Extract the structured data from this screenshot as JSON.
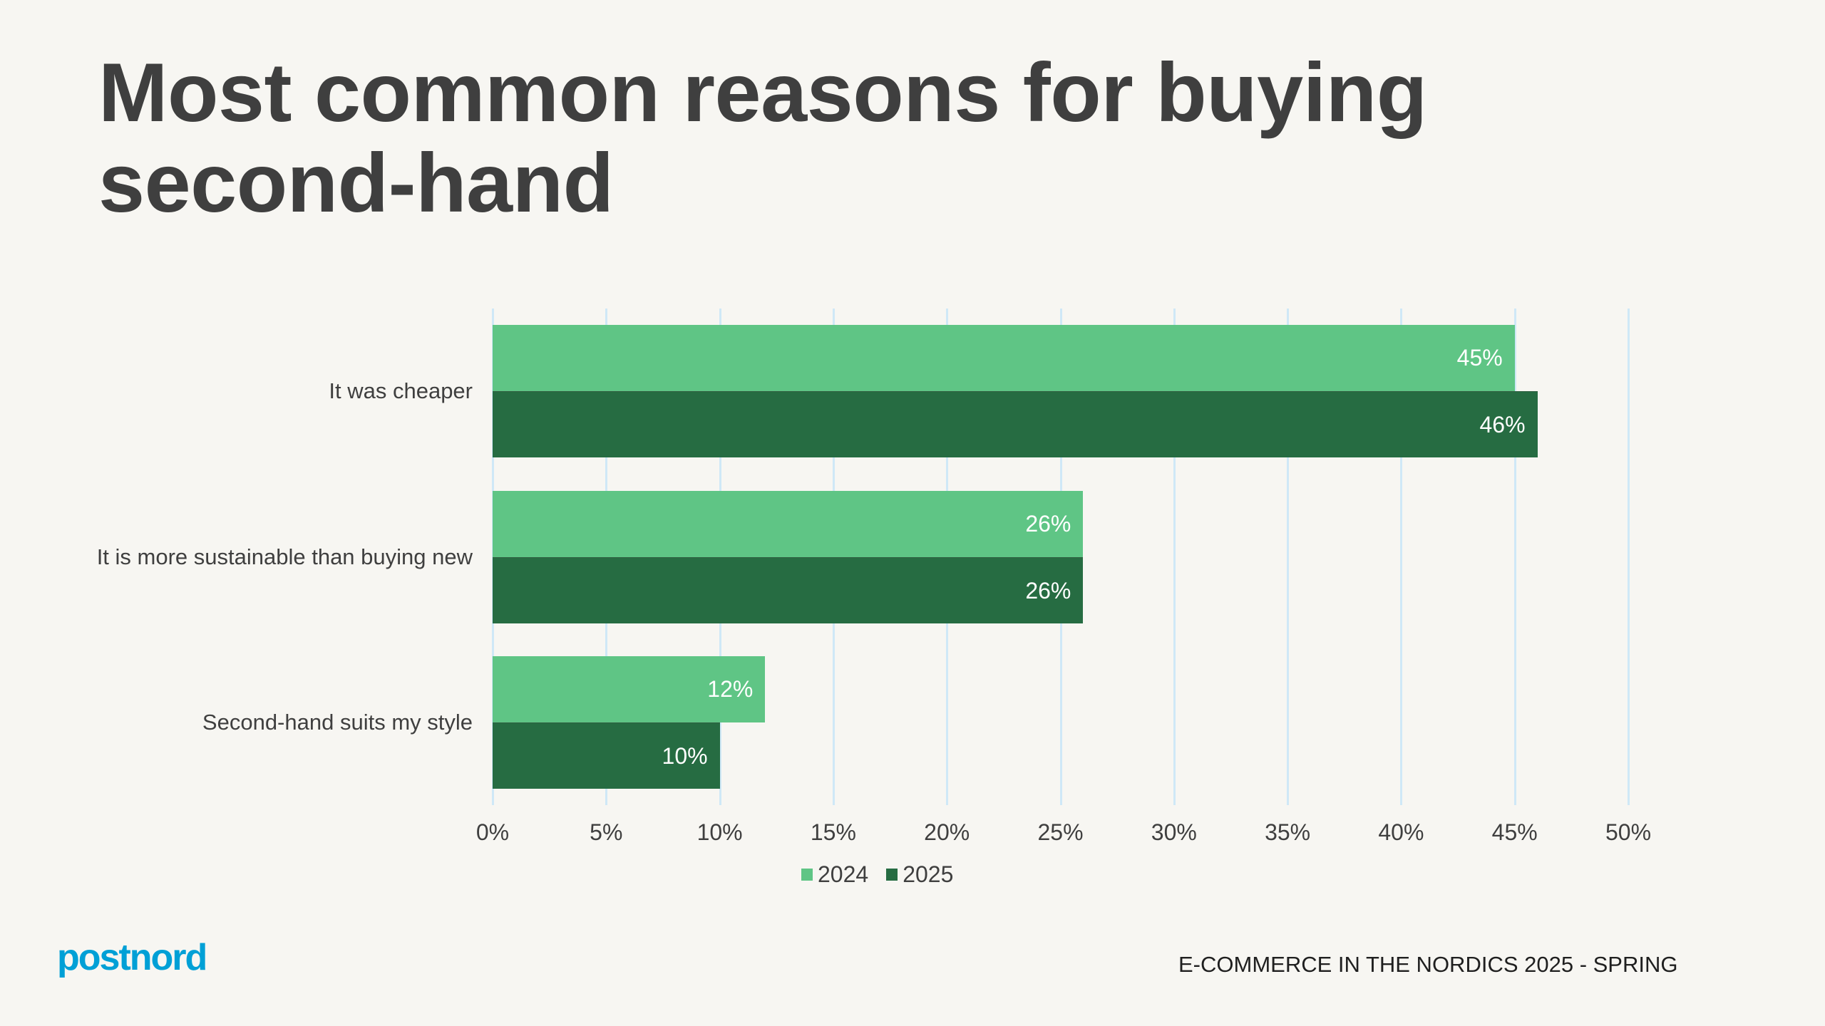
{
  "slide": {
    "title": "Most common reasons for buying second-hand",
    "footer": "E-COMMERCE IN THE NORDICS 2025 - SPRING",
    "logo": "postnord",
    "colors": {
      "background": "#f7f6f2",
      "series_2024": "#5fc585",
      "series_2025": "#266c42",
      "gridline": "#cfe8f7",
      "text": "#3f3f3f",
      "logo": "#00a0d6"
    }
  },
  "chart_data": {
    "type": "bar",
    "orientation": "horizontal",
    "title": "Most common reasons for buying second-hand",
    "categories": [
      "It was cheaper",
      "It is more sustainable than buying new",
      "Second-hand suits my style"
    ],
    "series": [
      {
        "name": "2024",
        "values": [
          45,
          26,
          12
        ],
        "labels": [
          "45%",
          "26%",
          "12%"
        ],
        "color": "#5fc585"
      },
      {
        "name": "2025",
        "values": [
          46,
          26,
          10
        ],
        "labels": [
          "46%",
          "26%",
          "10%"
        ],
        "color": "#266c42"
      }
    ],
    "xlabel": "",
    "ylabel": "",
    "xlim": [
      0,
      50
    ],
    "x_ticks": [
      "0%",
      "5%",
      "10%",
      "15%",
      "20%",
      "25%",
      "30%",
      "35%",
      "40%",
      "45%",
      "50%"
    ],
    "grid": "vertical",
    "legend": {
      "position": "bottom",
      "entries": [
        "2024",
        "2025"
      ]
    }
  }
}
